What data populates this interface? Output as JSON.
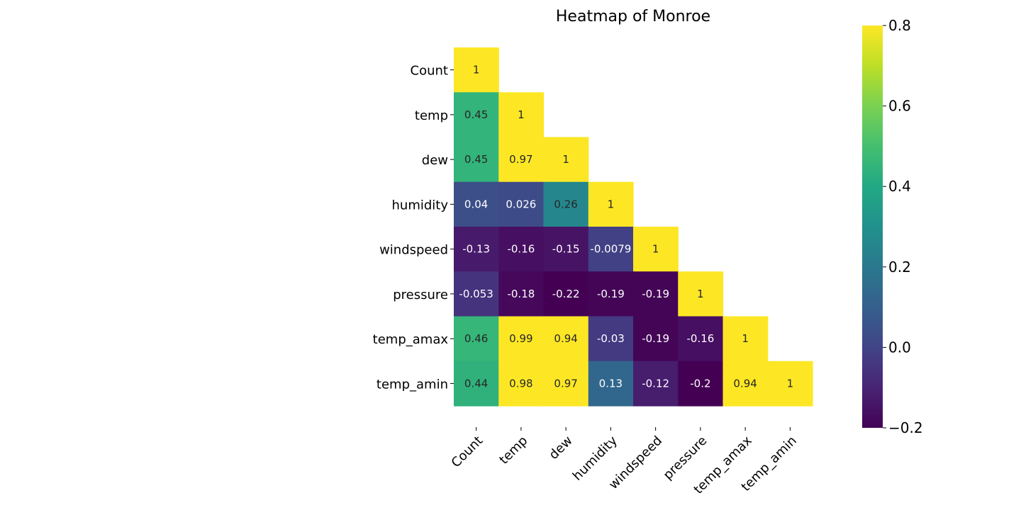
{
  "chart_data": {
    "type": "heatmap",
    "title": "Heatmap of Monroe",
    "variables": [
      "Count",
      "temp",
      "dew",
      "humidity",
      "windspeed",
      "pressure",
      "temp_amax",
      "temp_amin"
    ],
    "mask": "upper-triangle",
    "colormap": "viridis",
    "vmin": -0.2,
    "vmax": 0.8,
    "colorbar_ticks": [
      0.8,
      0.6,
      0.4,
      0.2,
      0.0,
      -0.2
    ],
    "colorbar_tick_labels": [
      "0.8",
      "0.6",
      "0.4",
      "0.2",
      "0.0",
      "−0.2"
    ],
    "matrix": [
      [
        1
      ],
      [
        0.45,
        1
      ],
      [
        0.45,
        0.97,
        1
      ],
      [
        0.04,
        0.026,
        0.26,
        1
      ],
      [
        -0.13,
        -0.16,
        -0.15,
        -0.0079,
        1
      ],
      [
        -0.053,
        -0.18,
        -0.22,
        -0.19,
        -0.19,
        1
      ],
      [
        0.46,
        0.99,
        0.94,
        -0.03,
        -0.19,
        -0.16,
        1
      ],
      [
        0.44,
        0.98,
        0.97,
        0.13,
        -0.12,
        -0.2,
        0.94,
        1
      ]
    ],
    "cell_labels": [
      [
        "1"
      ],
      [
        "0.45",
        "1"
      ],
      [
        "0.45",
        "0.97",
        "1"
      ],
      [
        "0.04",
        "0.026",
        "0.26",
        "1"
      ],
      [
        "-0.13",
        "-0.16",
        "-0.15",
        "-0.0079",
        "1"
      ],
      [
        "-0.053",
        "-0.18",
        "-0.22",
        "-0.19",
        "-0.19",
        "1"
      ],
      [
        "0.46",
        "0.99",
        "0.94",
        "-0.03",
        "-0.19",
        "-0.16",
        "1"
      ],
      [
        "0.44",
        "0.98",
        "0.97",
        "0.13",
        "-0.12",
        "-0.2",
        "0.94",
        "1"
      ]
    ]
  }
}
